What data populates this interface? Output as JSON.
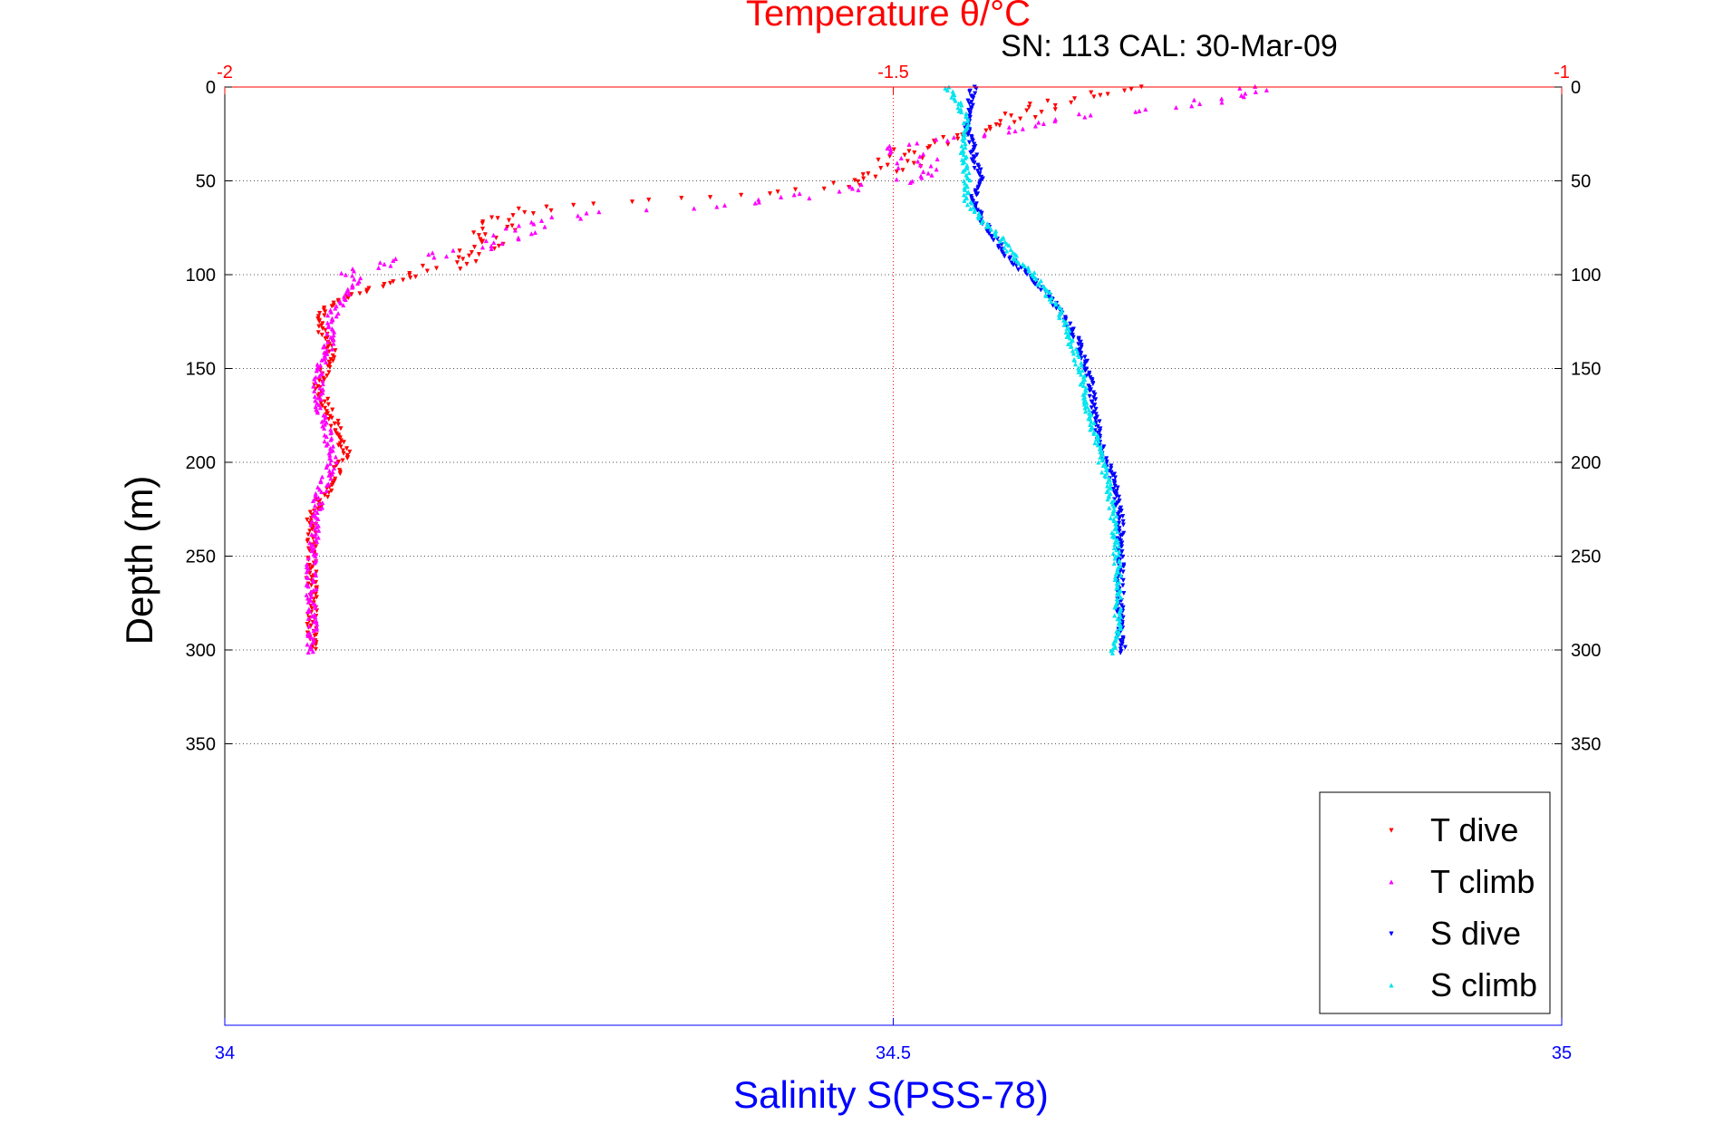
{
  "chart_data": {
    "type": "scatter",
    "title_top": "Temperature θ/°C",
    "subtitle": "SN: 113  CAL: 30-Mar-09",
    "xlabel_bottom": "Salinity S(PSS-78)",
    "ylabel": "Depth (m)",
    "x_top_axis": {
      "range": [
        -2,
        -1
      ],
      "ticks": [
        "-2",
        "-1.5",
        "-1"
      ],
      "color": "#ff0000"
    },
    "x_bottom_axis": {
      "range": [
        34,
        35
      ],
      "ticks": [
        "34",
        "34.5",
        "35"
      ],
      "color": "#0000ff"
    },
    "y_axis": {
      "range": [
        0,
        500
      ],
      "reversed": true,
      "ticks": [
        "0",
        "50",
        "100",
        "150",
        "200",
        "250",
        "300",
        "350"
      ],
      "grid": true
    },
    "legend": {
      "placement": "bottom-right",
      "entries": [
        {
          "label": "T dive",
          "color": "#ff0000",
          "marker": "triangle-down"
        },
        {
          "label": "T climb",
          "color": "#ff00ff",
          "marker": "triangle-up"
        },
        {
          "label": "S dive",
          "color": "#0000ff",
          "marker": "triangle-down"
        },
        {
          "label": "S climb",
          "color": "#00e5ee",
          "marker": "triangle-up"
        }
      ]
    },
    "series": [
      {
        "name": "T dive",
        "axis": "top",
        "profile": [
          [
            0,
            -1.32
          ],
          [
            8,
            -1.38
          ],
          [
            16,
            -1.41
          ],
          [
            24,
            -1.44
          ],
          [
            35,
            -1.49
          ],
          [
            45,
            -1.5
          ],
          [
            52,
            -1.53
          ],
          [
            56,
            -1.58
          ],
          [
            60,
            -1.68
          ],
          [
            65,
            -1.77
          ],
          [
            70,
            -1.79
          ],
          [
            78,
            -1.8
          ],
          [
            84,
            -1.8
          ],
          [
            90,
            -1.82
          ],
          [
            97,
            -1.84
          ],
          [
            105,
            -1.88
          ],
          [
            115,
            -1.92
          ],
          [
            125,
            -1.93
          ],
          [
            140,
            -1.92
          ],
          [
            160,
            -1.93
          ],
          [
            175,
            -1.92
          ],
          [
            195,
            -1.91
          ],
          [
            210,
            -1.92
          ],
          [
            230,
            -1.935
          ],
          [
            260,
            -1.935
          ],
          [
            300,
            -1.935
          ]
        ]
      },
      {
        "name": "T climb",
        "axis": "top",
        "profile": [
          [
            0,
            -1.22
          ],
          [
            8,
            -1.27
          ],
          [
            15,
            -1.35
          ],
          [
            25,
            -1.42
          ],
          [
            30,
            -1.49
          ],
          [
            40,
            -1.48
          ],
          [
            50,
            -1.48
          ],
          [
            55,
            -1.54
          ],
          [
            62,
            -1.6
          ],
          [
            68,
            -1.74
          ],
          [
            76,
            -1.78
          ],
          [
            84,
            -1.8
          ],
          [
            90,
            -1.84
          ],
          [
            96,
            -1.89
          ],
          [
            100,
            -1.9
          ],
          [
            110,
            -1.91
          ],
          [
            122,
            -1.92
          ],
          [
            135,
            -1.92
          ],
          [
            150,
            -1.93
          ],
          [
            165,
            -1.93
          ],
          [
            180,
            -1.925
          ],
          [
            200,
            -1.92
          ],
          [
            220,
            -1.93
          ],
          [
            250,
            -1.935
          ],
          [
            280,
            -1.935
          ],
          [
            302,
            -1.935
          ]
        ]
      },
      {
        "name": "S dive",
        "axis": "bottom",
        "profile": [
          [
            0,
            34.56
          ],
          [
            10,
            34.557
          ],
          [
            20,
            34.555
          ],
          [
            35,
            34.56
          ],
          [
            50,
            34.565
          ],
          [
            60,
            34.56
          ],
          [
            70,
            34.565
          ],
          [
            80,
            34.575
          ],
          [
            90,
            34.585
          ],
          [
            100,
            34.6
          ],
          [
            110,
            34.615
          ],
          [
            120,
            34.625
          ],
          [
            135,
            34.638
          ],
          [
            150,
            34.645
          ],
          [
            170,
            34.65
          ],
          [
            190,
            34.655
          ],
          [
            210,
            34.665
          ],
          [
            230,
            34.67
          ],
          [
            260,
            34.67
          ],
          [
            290,
            34.67
          ],
          [
            302,
            34.672
          ]
        ]
      },
      {
        "name": "S climb",
        "axis": "bottom",
        "profile": [
          [
            0,
            34.54
          ],
          [
            10,
            34.55
          ],
          [
            20,
            34.555
          ],
          [
            35,
            34.553
          ],
          [
            50,
            34.555
          ],
          [
            60,
            34.555
          ],
          [
            70,
            34.565
          ],
          [
            80,
            34.58
          ],
          [
            90,
            34.59
          ],
          [
            100,
            34.605
          ],
          [
            110,
            34.615
          ],
          [
            120,
            34.625
          ],
          [
            135,
            34.632
          ],
          [
            150,
            34.64
          ],
          [
            170,
            34.645
          ],
          [
            190,
            34.652
          ],
          [
            210,
            34.66
          ],
          [
            230,
            34.665
          ],
          [
            260,
            34.668
          ],
          [
            290,
            34.668
          ],
          [
            302,
            34.665
          ]
        ]
      }
    ]
  }
}
